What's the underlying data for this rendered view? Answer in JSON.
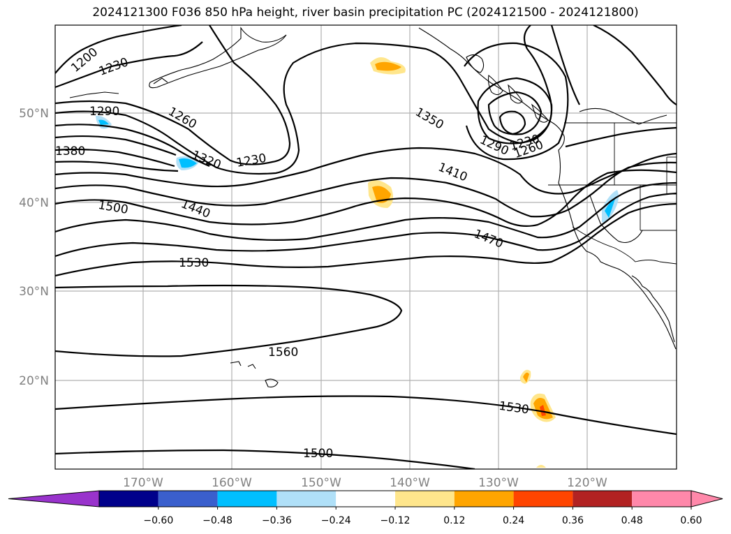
{
  "title": "2024121300 F036 850 hPa height, river basin precipitation PC (2024121500 - 2024121800)",
  "lat_labels": [
    "50°N",
    "40°N",
    "30°N",
    "20°N"
  ],
  "lon_labels": [
    "170°W",
    "160°W",
    "150°W",
    "140°W",
    "130°W",
    "120°W"
  ],
  "contour_labels": [
    "1200",
    "1230",
    "1290",
    "1260",
    "1380",
    "1320",
    "1230",
    "1350",
    "1290",
    "1230",
    "1260",
    "1410",
    "1500",
    "1440",
    "1470",
    "1530",
    "1560",
    "1530",
    "1500"
  ],
  "colorbar": {
    "tick_labels": [
      "−0.60",
      "−0.48",
      "−0.36",
      "−0.24",
      "−0.12",
      "0.12",
      "0.24",
      "0.36",
      "0.48",
      "0.60"
    ],
    "colors": [
      "#9933cc",
      "#00008b",
      "#3a5fcd",
      "#00bfff",
      "#b0e0f8",
      "#ffffff",
      "#ffe68c",
      "#ffa500",
      "#ff4500",
      "#b22222",
      "#ff88aa",
      "#ff88aa"
    ]
  }
}
